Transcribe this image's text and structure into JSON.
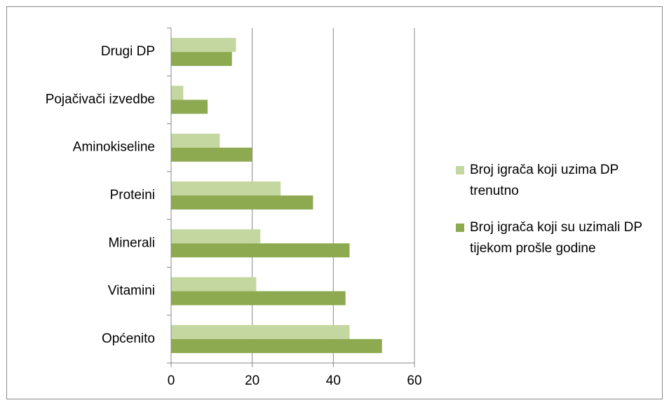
{
  "chart_data": {
    "type": "bar",
    "orientation": "horizontal",
    "categories": [
      "Općenito",
      "Vitamini",
      "Minerali",
      "Proteini",
      "Aminokiseline",
      "Pojačivači izvedbe",
      "Drugi DP"
    ],
    "series": [
      {
        "name": "Broj igrača koji uzima DP trenutno",
        "color": "#c4d7a0",
        "values": [
          44,
          21,
          22,
          27,
          12,
          3,
          16
        ]
      },
      {
        "name": "Broj igrača koji su uzimali DP tijekom prošle godine",
        "color": "#8eaa50",
        "values": [
          52,
          43,
          44,
          35,
          20,
          9,
          15
        ]
      }
    ],
    "xlim": [
      0,
      60
    ],
    "xticks": [
      0,
      20,
      40,
      60
    ],
    "grid": true,
    "legend": "right"
  }
}
